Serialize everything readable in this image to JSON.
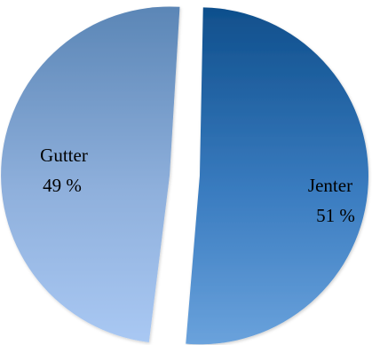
{
  "chart_data": {
    "type": "pie",
    "title": "",
    "series": [
      {
        "label": "Jenter",
        "percent_text": "51 %",
        "value": 51,
        "color": "#1f5fa0",
        "exploded": true
      },
      {
        "label": "Gutter",
        "percent_text": "49 %",
        "value": 49,
        "color": "#8fb0dc",
        "exploded": true
      }
    ],
    "legend": "none",
    "data_labels": "inside"
  }
}
